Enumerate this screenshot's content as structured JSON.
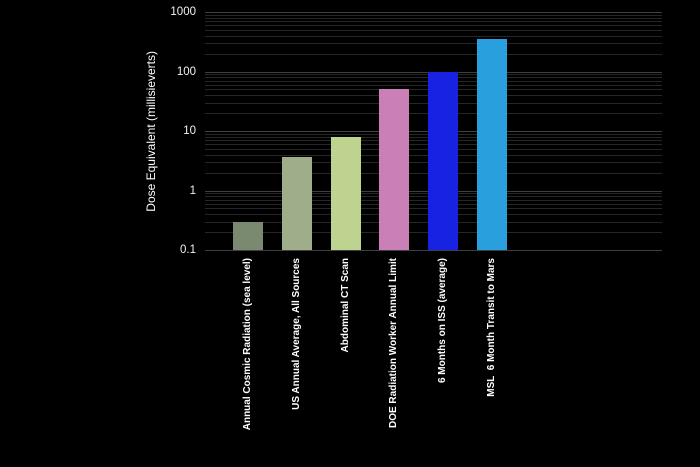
{
  "chart_data": {
    "type": "bar",
    "title": "",
    "xlabel": "",
    "ylabel": "Dose Equivalent (millisieverts)",
    "y_scale": "log",
    "ylim": [
      0.1,
      1000
    ],
    "grid": true,
    "legend": false,
    "background_color": "#000000",
    "text_color": "#ffffff",
    "gridline_color_major": "#3f3f3f",
    "gridline_color_minor": "#262626",
    "y_ticks": [
      {
        "label": "1000",
        "value": 1000
      },
      {
        "label": "100",
        "value": 100
      },
      {
        "label": "10",
        "value": 10
      },
      {
        "label": "1",
        "value": 1
      },
      {
        "label": "0.1",
        "value": 0.1
      }
    ],
    "categories": [
      "Annual Cosmic Radiation (sea level)",
      "US Annual Average, All Sources",
      "Abdominal CT Scan",
      "DOE Radiation Worker Annual Limit",
      "6 Months on ISS (average)",
      "MSL  6 Month Transit to Mars"
    ],
    "values": [
      0.3,
      3.6,
      8,
      50,
      100,
      350
    ],
    "bar_colors": [
      "#798a70",
      "#9fad8a",
      "#bed38f",
      "#ca7fb6",
      "#1822e2",
      "#29a0dd"
    ]
  }
}
